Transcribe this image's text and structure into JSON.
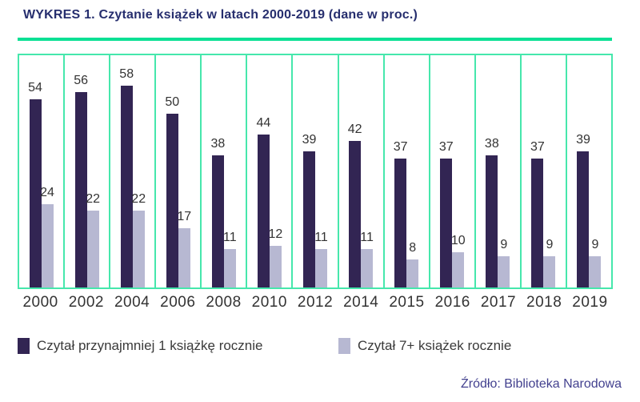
{
  "chart_data": {
    "type": "bar",
    "title": "WYKRES 1. Czytanie książek w latach 2000-2019 (dane w proc.)",
    "categories": [
      "2000",
      "2002",
      "2004",
      "2006",
      "2008",
      "2010",
      "2012",
      "2014",
      "2015",
      "2016",
      "2017",
      "2018",
      "2019"
    ],
    "series": [
      {
        "name": "Czytał przynajmniej 1 książkę rocznie",
        "values": [
          54,
          56,
          58,
          50,
          38,
          44,
          39,
          42,
          37,
          37,
          38,
          37,
          39
        ],
        "color": "#322553"
      },
      {
        "name": "Czytał 7+ książek rocznie",
        "values": [
          24,
          22,
          22,
          17,
          11,
          12,
          11,
          11,
          8,
          10,
          9,
          9,
          9
        ],
        "color": "#b7b8d2"
      }
    ],
    "ylim": [
      0,
      67
    ],
    "grid": "vertical-cell-separators",
    "legend_position": "bottom",
    "data_labels": true,
    "source": "Źródło: Biblioteka Narodowa",
    "accent_color": "#0be094",
    "border_color": "#46e7ac",
    "title_color": "#262e6e",
    "source_color": "#43418f"
  }
}
